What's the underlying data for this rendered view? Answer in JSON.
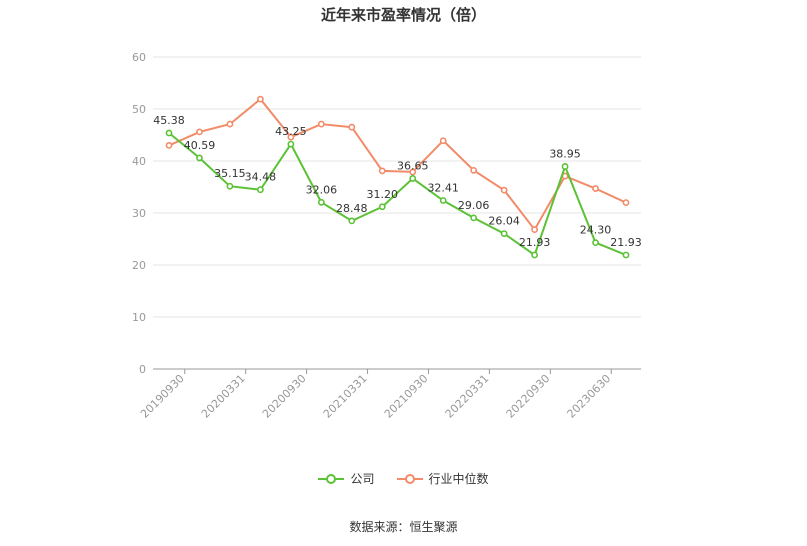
{
  "chart_data": {
    "type": "line",
    "title": "近年来市盈率情况（倍）",
    "x_tick_labels": [
      "20190930",
      "20200331",
      "20200930",
      "20210331",
      "20210930",
      "20220331",
      "20220930",
      "20230630"
    ],
    "ylim": [
      0,
      60
    ],
    "y_ticks": [
      "0",
      "10",
      "20",
      "30",
      "40",
      "50",
      "60"
    ],
    "grid": true,
    "legend_position": "bottom",
    "series": [
      {
        "name": "公司",
        "color": "#5bc236",
        "values": [
          45.38,
          40.59,
          35.15,
          34.48,
          43.25,
          32.06,
          28.48,
          31.2,
          36.65,
          32.41,
          29.06,
          26.04,
          21.93,
          38.95,
          24.3,
          21.93
        ],
        "labels": [
          "45.38",
          "40.59",
          "35.15",
          "34.48",
          "43.25",
          "32.06",
          "28.48",
          "31.20",
          "36.65",
          "32.41",
          "29.06",
          "26.04",
          "21.93",
          "38.95",
          "24.30",
          "21.93"
        ]
      },
      {
        "name": "行业中位数",
        "color": "#f28b68",
        "values": [
          43.0,
          45.6,
          47.1,
          51.9,
          44.6,
          47.1,
          46.5,
          38.1,
          37.9,
          43.9,
          38.2,
          34.4,
          26.8,
          37.1,
          34.7,
          32.0
        ]
      }
    ]
  },
  "footer": {
    "source": "数据来源：恒生聚源"
  }
}
